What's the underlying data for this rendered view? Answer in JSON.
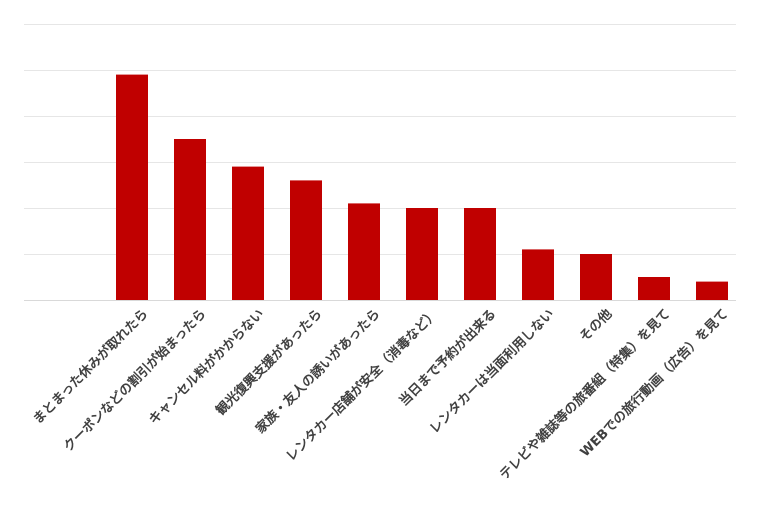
{
  "chart_data": {
    "type": "bar",
    "title": "",
    "xlabel": "",
    "ylabel": "",
    "ylim": [
      0,
      60
    ],
    "grid": true,
    "legend": "none",
    "bar_color": "#c00000",
    "categories": [
      "まとまった休みが取れたら",
      "クーポンなどの割引が始まったら",
      "キャンセル料がかからない",
      "観光復興支援があったら",
      "家族・友人の誘いがあったら",
      "レンタカー店舗が安全（消毒など）",
      "当日まで予約が出来る",
      "レンタカーは当面利用しない",
      "その他",
      "テレビや雑誌等の旅番組（特集）を見て",
      "WEBでの旅行動画（広告）を見て"
    ],
    "values": [
      49,
      35,
      29,
      26,
      21,
      20,
      20,
      11,
      10,
      5,
      4
    ]
  }
}
